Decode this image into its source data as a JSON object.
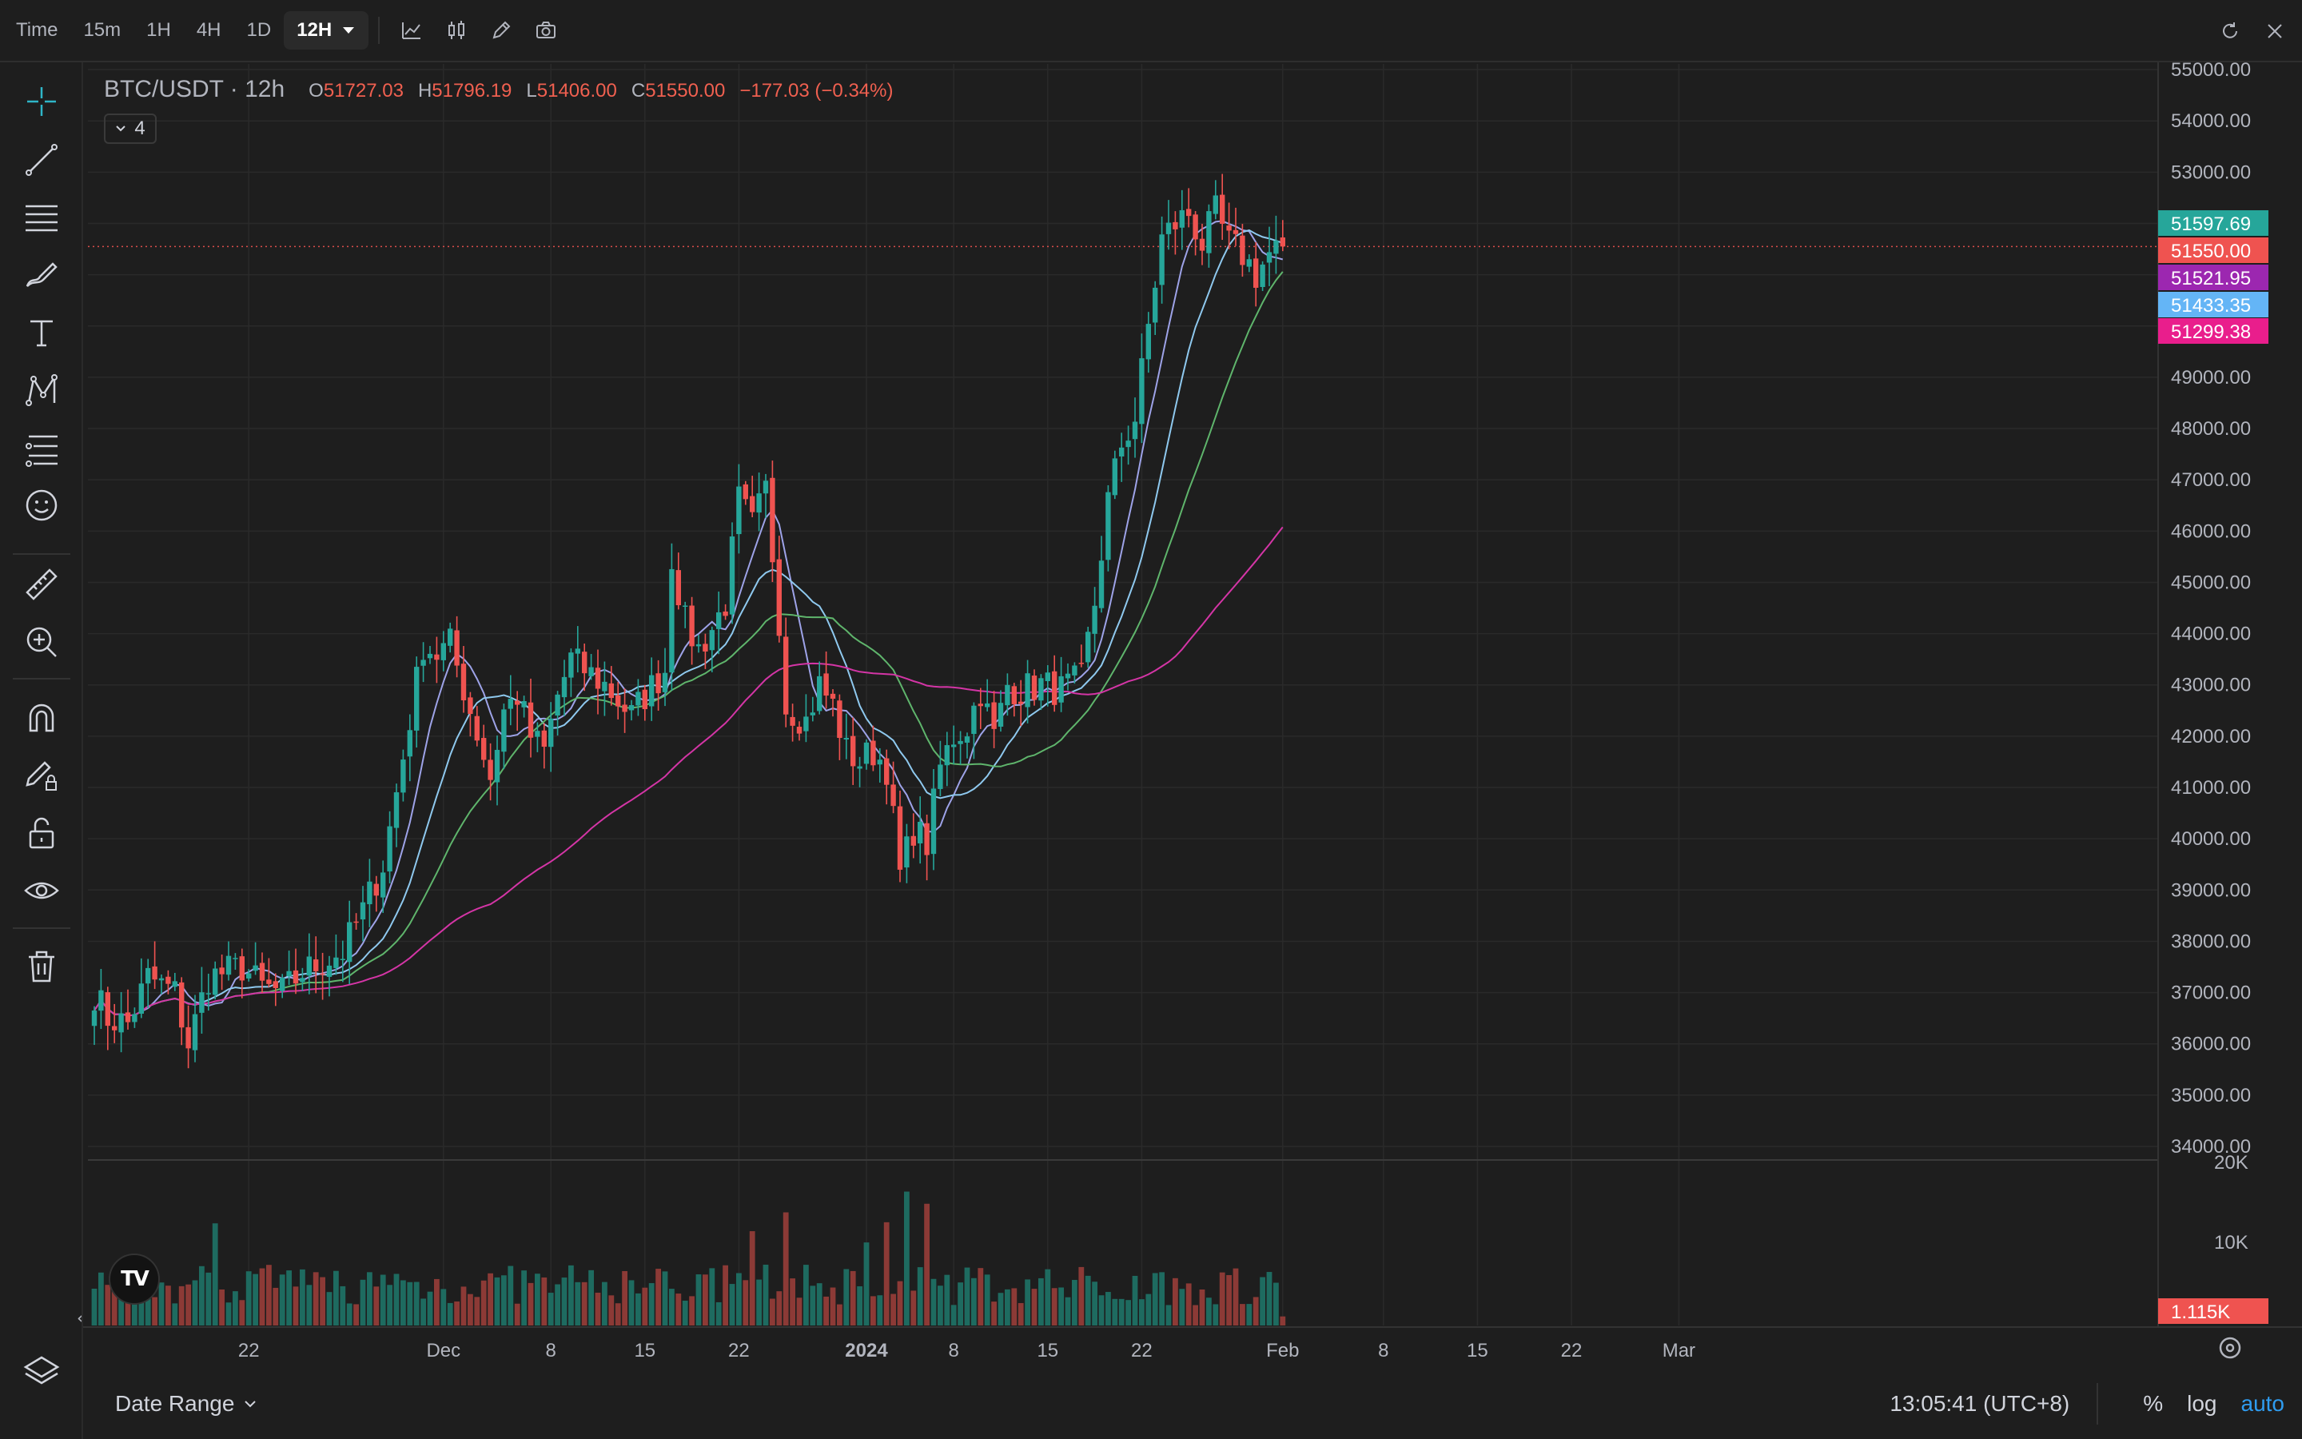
{
  "toolbar": {
    "timeframes": [
      {
        "label": "Time",
        "active": false
      },
      {
        "label": "15m",
        "active": false
      },
      {
        "label": "1H",
        "active": false
      },
      {
        "label": "4H",
        "active": false
      },
      {
        "label": "1D",
        "active": false
      },
      {
        "label": "12H",
        "active": true
      }
    ],
    "icons": [
      "line-chart-icon",
      "candles-icon",
      "pencil-icon",
      "camera-icon"
    ],
    "right_icons": [
      "refresh-icon",
      "close-icon"
    ]
  },
  "legend": {
    "symbol": "BTC/USDT · 12h",
    "o_label": "O",
    "o_value": "51727.03",
    "h_label": "H",
    "h_value": "51796.19",
    "l_label": "L",
    "l_value": "51406.00",
    "c_label": "C",
    "c_value": "51550.00",
    "change": "−177.03 (−0.34%)",
    "indicator_count": "4"
  },
  "left_tools": [
    "crosshair-icon",
    "trend-line-icon",
    "horizontal-lines-icon",
    "brush-icon",
    "text-icon",
    "pattern-icon",
    "fib-icon",
    "emoji-icon",
    "ruler-icon",
    "zoom-in-icon",
    "magnet-icon",
    "lock-pencil-icon",
    "unlock-icon",
    "eye-icon",
    "trash-icon",
    "layers-icon"
  ],
  "bottom": {
    "date_range": "Date Range",
    "clock": "13:05:41 (UTC+8)",
    "percent": "%",
    "log": "log",
    "auto": "auto"
  },
  "colors": {
    "up": "#26a69a",
    "down": "#ef5350",
    "ma1": "#9ea3e8",
    "ma2": "#8fc9ef",
    "ma3": "#5fb56c",
    "ma4": "#d435a6"
  },
  "chart_data": {
    "type": "candlestick",
    "symbol": "BTC/USDT",
    "interval": "12h",
    "ylim": [
      33600,
      55200
    ],
    "y_ticks": [
      "55000.00",
      "54000.00",
      "53000.00",
      "49000.00",
      "48000.00",
      "47000.00",
      "46000.00",
      "45000.00",
      "44000.00",
      "43000.00",
      "42000.00",
      "41000.00",
      "40000.00",
      "39000.00",
      "38000.00",
      "37000.00",
      "36000.00",
      "35000.00",
      "34000.00"
    ],
    "x_ticks": [
      {
        "label": "22",
        "t": 23
      },
      {
        "label": "Dec",
        "t": 52
      },
      {
        "label": "8",
        "t": 68
      },
      {
        "label": "15",
        "t": 82
      },
      {
        "label": "22",
        "t": 96
      },
      {
        "label": "2024",
        "t": 115
      },
      {
        "label": "8",
        "t": 128
      },
      {
        "label": "15",
        "t": 142
      },
      {
        "label": "22",
        "t": 156
      },
      {
        "label": "Feb",
        "t": 177
      },
      {
        "label": "8",
        "t": 192
      },
      {
        "label": "15",
        "t": 206
      },
      {
        "label": "22",
        "t": 220
      },
      {
        "label": "Mar",
        "t": 236
      }
    ],
    "close_anchors": [
      [
        0,
        37000
      ],
      [
        2,
        36500
      ],
      [
        5,
        36400
      ],
      [
        8,
        37300
      ],
      [
        12,
        37000
      ],
      [
        14,
        36000
      ],
      [
        17,
        37300
      ],
      [
        22,
        37500
      ],
      [
        25,
        37100
      ],
      [
        28,
        37000
      ],
      [
        31,
        37400
      ],
      [
        34,
        37600
      ],
      [
        37,
        37800
      ],
      [
        40,
        38600
      ],
      [
        43,
        39500
      ],
      [
        46,
        41600
      ],
      [
        49,
        43800
      ],
      [
        51,
        43600
      ],
      [
        53,
        43800
      ],
      [
        56,
        42500
      ],
      [
        59,
        41200
      ],
      [
        61,
        42500
      ],
      [
        63,
        42800
      ],
      [
        65,
        42000
      ],
      [
        67,
        41700
      ],
      [
        69,
        42800
      ],
      [
        71,
        43500
      ],
      [
        73,
        43300
      ],
      [
        76,
        43000
      ],
      [
        78,
        42700
      ],
      [
        80,
        42400
      ],
      [
        82,
        42800
      ],
      [
        85,
        43300
      ],
      [
        86,
        45500
      ],
      [
        88,
        44200
      ],
      [
        90,
        43700
      ],
      [
        92,
        44100
      ],
      [
        94,
        44600
      ],
      [
        96,
        46600
      ],
      [
        98,
        46100
      ],
      [
        100,
        46800
      ],
      [
        102,
        44300
      ],
      [
        103,
        42600
      ],
      [
        106,
        42300
      ],
      [
        108,
        43000
      ],
      [
        110,
        42600
      ],
      [
        112,
        41700
      ],
      [
        114,
        41500
      ],
      [
        116,
        41700
      ],
      [
        118,
        41400
      ],
      [
        120,
        39300
      ],
      [
        122,
        40200
      ],
      [
        124,
        39900
      ],
      [
        126,
        41400
      ],
      [
        128,
        42000
      ],
      [
        130,
        42200
      ],
      [
        132,
        42900
      ],
      [
        134,
        42000
      ],
      [
        136,
        43000
      ],
      [
        138,
        42900
      ],
      [
        141,
        43000
      ],
      [
        144,
        42900
      ],
      [
        147,
        43100
      ],
      [
        149,
        44600
      ],
      [
        151,
        46600
      ],
      [
        153,
        47700
      ],
      [
        155,
        48200
      ],
      [
        157,
        50000
      ],
      [
        159,
        51700
      ],
      [
        161,
        52000
      ],
      [
        163,
        52200
      ],
      [
        165,
        51600
      ],
      [
        167,
        52200
      ],
      [
        169,
        51600
      ],
      [
        171,
        51400
      ],
      [
        173,
        51000
      ],
      [
        175,
        51400
      ],
      [
        177,
        51550
      ]
    ],
    "candle_count": 178,
    "first_candle_x": 118,
    "candle_step": 8.4,
    "last_price": "51550.00",
    "ma_labels": [
      {
        "value": "51597.69",
        "color": "#26a69a",
        "price": 51597.69
      },
      {
        "value": "51550.00",
        "color": "#ef5350",
        "price": 51550.0
      },
      {
        "value": "51521.95",
        "color": "#9c27b0",
        "price": 51521.95
      },
      {
        "value": "51433.35",
        "color": "#64b5f6",
        "price": 51433.35
      },
      {
        "value": "51299.38",
        "color": "#e91e8c",
        "price": 51299.38
      }
    ],
    "volume": {
      "y_ticks": [
        "20K",
        "10K"
      ],
      "ylim": [
        0,
        20000
      ],
      "last": "1.115K"
    },
    "moving_averages": [
      7,
      14,
      25,
      60
    ]
  }
}
